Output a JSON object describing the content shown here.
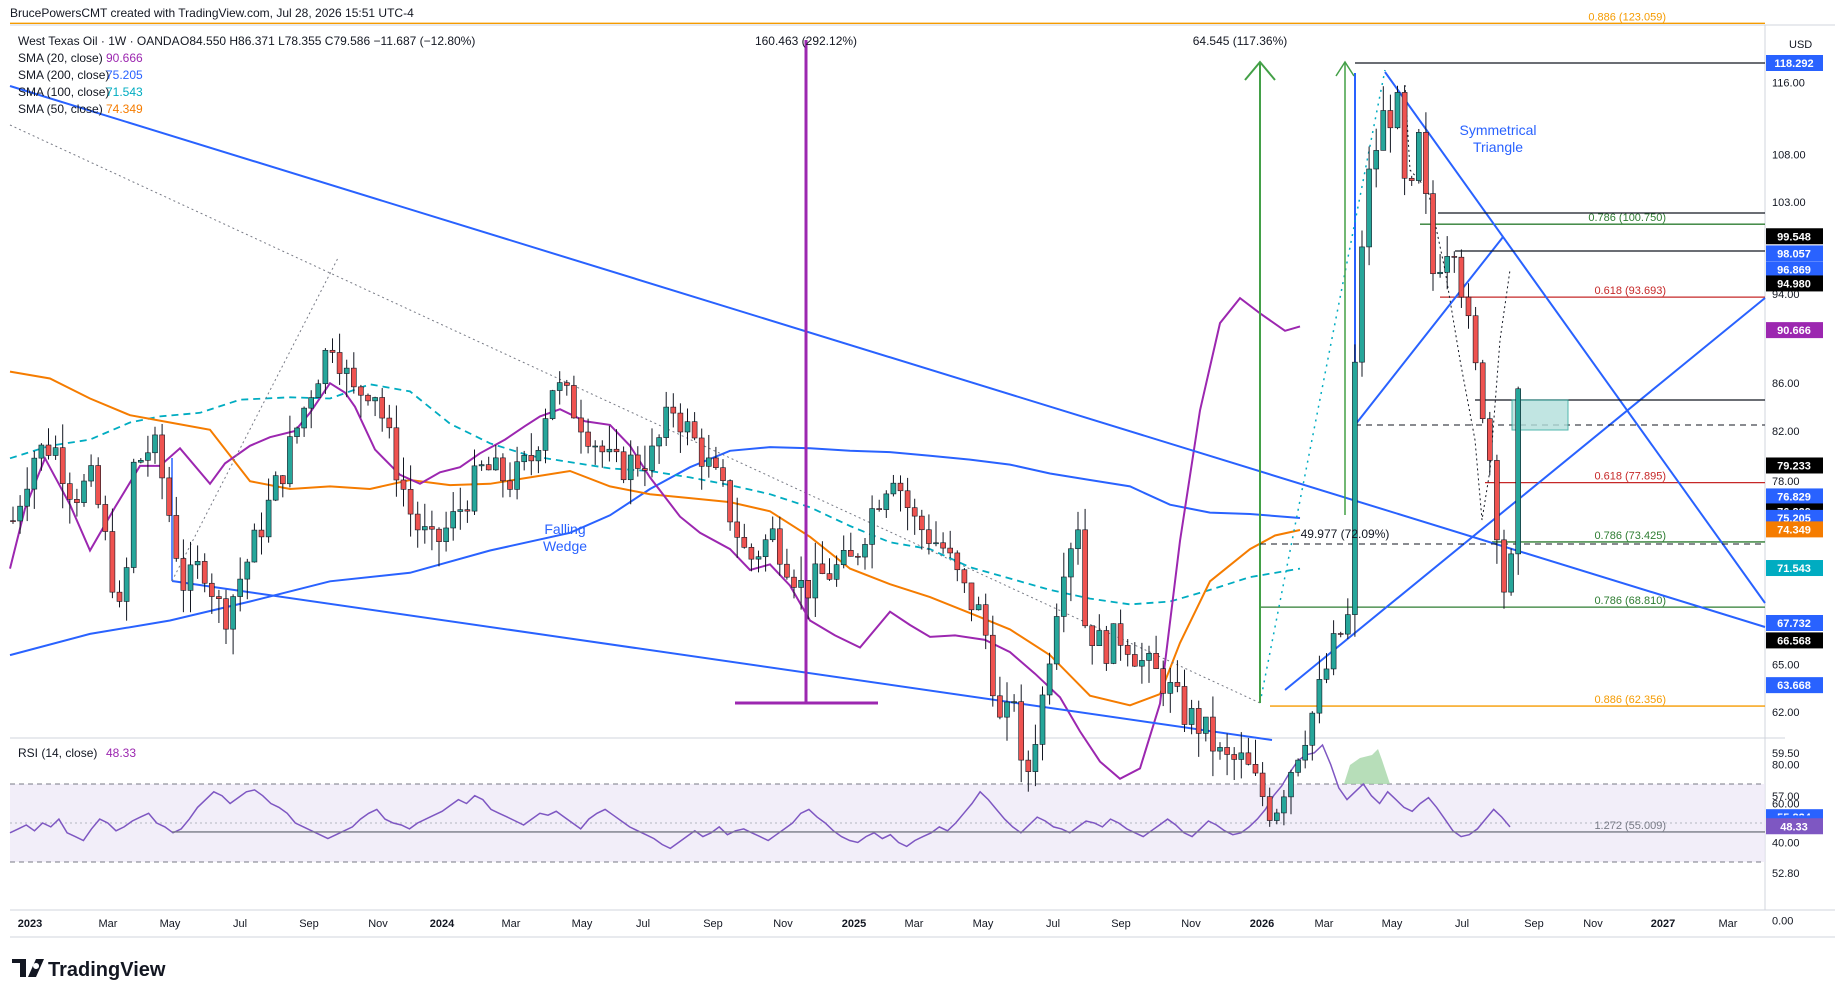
{
  "header": {
    "credit": "BrucePowersCMT created with TradingView.com, Jul 28, 2026 15:51 UTC-4",
    "symbol_line": "West Texas Oil · 1W · OANDA",
    "ohlc": "O84.550 H86.371 L78.355 C79.586 −11.687 (−12.80%)"
  },
  "legend": [
    {
      "name": "SMA (20, close)",
      "value": "90.666",
      "color": "#9c27b0"
    },
    {
      "name": "SMA (200, close)",
      "value": "75.205",
      "color": "#2962ff"
    },
    {
      "name": "SMA (100, close)",
      "value": "71.543",
      "color": "#00acc1"
    },
    {
      "name": "SMA (50, close)",
      "value": "74.349",
      "color": "#f57c00"
    }
  ],
  "currency": "USD",
  "brand": "TradingView",
  "rsi": {
    "label": "RSI (14, close)",
    "value": "48.33"
  },
  "annotations": {
    "falling_wedge": [
      "Falling",
      "Wedge"
    ],
    "sym_triangle": [
      "Symmetrical",
      "Triangle"
    ],
    "measure_1": "160.463 (292.12%)",
    "measure_2": "64.545 (117.36%)",
    "measure_3": "49.977 (72.09%)"
  },
  "colors": {
    "bull": "#26a69a",
    "bear": "#ef5350",
    "sma20": "#9c27b0",
    "sma50": "#f57c00",
    "sma100": "#00acc1",
    "sma200": "#2962ff",
    "trend": "#2962ff",
    "purple": "#9c27b0",
    "green": "#43a047",
    "red": "#c62828",
    "orange": "#f59b00",
    "grey": "#787b86"
  },
  "chart_data": {
    "type": "line",
    "title": "West Texas Oil · 1W · OANDA",
    "y_axis": {
      "unit": "USD",
      "scale": "log",
      "range": [
        52.8,
        124.5
      ],
      "ticks": [
        116.0,
        108.0,
        103.0,
        94.0,
        86.0,
        82.0,
        78.0,
        65.0,
        62.0,
        59.5,
        57.0,
        52.8
      ]
    },
    "x_axis": {
      "ticks": [
        "2023",
        "Mar",
        "May",
        "Jul",
        "Sep",
        "Nov",
        "2024",
        "Mar",
        "May",
        "Jul",
        "Sep",
        "Nov",
        "2025",
        "Mar",
        "May",
        "Jul",
        "Sep",
        "Nov",
        "2026",
        "Mar",
        "May",
        "Jul",
        "Sep",
        "Nov",
        "2027",
        "Mar"
      ]
    },
    "price_labels": [
      {
        "value": "118.292",
        "color": "#2962ff"
      },
      {
        "value": "99.548",
        "color": "#000000"
      },
      {
        "value": "98.057",
        "color": "#2962ff"
      },
      {
        "value": "96.869",
        "color": "#2962ff"
      },
      {
        "value": "94.980",
        "color": "#000000"
      },
      {
        "value": "90.666",
        "color": "#9c27b0"
      },
      {
        "value": "79.233",
        "color": "#000000"
      },
      {
        "value": "76.829",
        "color": "#2962ff"
      },
      {
        "value": "76.829",
        "color": "#000000"
      },
      {
        "value": "75.205",
        "color": "#2962ff"
      },
      {
        "value": "74.349",
        "color": "#f57c00"
      },
      {
        "value": "71.543",
        "color": "#00acc1"
      },
      {
        "value": "67.732",
        "color": "#2962ff"
      },
      {
        "value": "66.568",
        "color": "#000000"
      },
      {
        "value": "63.668",
        "color": "#2962ff"
      },
      {
        "value": "55.824",
        "color": "#2962ff"
      },
      {
        "value": "55.480",
        "color": "#2962ff"
      }
    ],
    "fib_levels": [
      {
        "label": "0.886 (123.059)",
        "value": 123.059,
        "color": "#f59b00"
      },
      {
        "label": "0.786 (100.750)",
        "value": 100.75,
        "color": "#2e7d32"
      },
      {
        "label": "0.618 (93.693)",
        "value": 93.693,
        "color": "#c62828"
      },
      {
        "label": "0.618 (77.895)",
        "value": 77.895,
        "color": "#c62828"
      },
      {
        "label": "0.786 (73.425)",
        "value": 73.425,
        "color": "#2e7d32"
      },
      {
        "label": "0.786 (68.810)",
        "value": 68.81,
        "color": "#2e7d32"
      },
      {
        "label": "0.886 (62.356)",
        "value": 62.356,
        "color": "#f59b00"
      },
      {
        "label": "1.272 (55.009)",
        "value": 55.009,
        "color": "#787b86"
      }
    ],
    "rsi": {
      "levels": [
        70,
        50,
        30
      ],
      "ticks": [
        80.0,
        60.0,
        40.0,
        0.0
      ],
      "last": 48.33,
      "values": [
        45,
        47,
        49,
        46,
        50,
        48,
        52,
        45,
        43,
        41,
        47,
        52,
        50,
        46,
        48,
        51,
        53,
        55,
        50,
        48,
        45,
        47,
        52,
        58,
        62,
        66,
        64,
        60,
        63,
        66,
        67,
        64,
        60,
        58,
        55,
        50,
        48,
        46,
        44,
        42,
        44,
        46,
        48,
        52,
        55,
        57,
        52,
        50,
        49,
        47,
        50,
        52,
        54,
        56,
        59,
        62,
        60,
        64,
        62,
        57,
        55,
        53,
        51,
        49,
        52,
        55,
        54,
        56,
        53,
        50,
        47,
        52,
        55,
        57,
        54,
        51,
        48,
        46,
        44,
        42,
        39,
        37,
        40,
        43,
        46,
        43,
        45,
        48,
        44,
        46,
        47,
        45,
        43,
        41,
        44,
        47,
        50,
        55,
        57,
        53,
        50,
        46,
        43,
        41,
        40,
        43,
        45,
        42,
        44,
        40,
        38,
        41,
        43,
        45,
        48,
        46,
        50,
        55,
        60,
        66,
        62,
        57,
        52,
        48,
        45,
        49,
        53,
        51,
        48,
        47,
        45,
        48,
        51,
        50,
        48,
        52,
        50,
        47,
        45,
        43,
        46,
        49,
        52,
        49,
        45,
        43,
        47,
        51,
        49,
        46,
        44,
        45,
        48,
        52,
        57,
        64,
        69,
        76,
        82,
        85,
        86,
        90,
        80,
        68,
        62,
        66,
        70,
        64,
        60,
        66,
        62,
        58,
        56,
        60,
        63,
        58,
        52,
        46,
        43,
        44,
        47,
        52,
        57,
        53,
        48
      ]
    },
    "sma20": [
      [
        0,
        71.5
      ],
      [
        15,
        75.9
      ],
      [
        35,
        79.8
      ],
      [
        60,
        76.2
      ],
      [
        80,
        72.8
      ],
      [
        105,
        76.0
      ],
      [
        130,
        79.2
      ],
      [
        150,
        79.2
      ],
      [
        170,
        80.6
      ],
      [
        200,
        77.8
      ],
      [
        215,
        79.4
      ],
      [
        240,
        80.8
      ],
      [
        260,
        81.5
      ],
      [
        285,
        82.0
      ],
      [
        300,
        83.5
      ],
      [
        320,
        86.0
      ],
      [
        335,
        85.2
      ],
      [
        345,
        84.0
      ],
      [
        365,
        80.5
      ],
      [
        390,
        78.5
      ],
      [
        410,
        77.8
      ],
      [
        430,
        78.7
      ],
      [
        450,
        79.1
      ],
      [
        470,
        80.2
      ],
      [
        495,
        81.3
      ],
      [
        515,
        82.4
      ],
      [
        530,
        83.2
      ],
      [
        550,
        83.8
      ],
      [
        575,
        82.8
      ],
      [
        600,
        82.5
      ],
      [
        620,
        80.8
      ],
      [
        640,
        78.3
      ],
      [
        670,
        75.3
      ],
      [
        690,
        74.1
      ],
      [
        720,
        72.9
      ],
      [
        740,
        71.4
      ],
      [
        760,
        71.8
      ],
      [
        780,
        70.3
      ],
      [
        800,
        67.9
      ],
      [
        825,
        66.9
      ],
      [
        850,
        66.1
      ],
      [
        880,
        68.5
      ],
      [
        900,
        67.6
      ],
      [
        920,
        66.8
      ],
      [
        945,
        66.9
      ],
      [
        975,
        66.6
      ],
      [
        1000,
        65.8
      ],
      [
        1025,
        64.4
      ],
      [
        1050,
        62.9
      ],
      [
        1070,
        60.8
      ],
      [
        1090,
        59.0
      ],
      [
        1110,
        58.0
      ],
      [
        1130,
        58.6
      ],
      [
        1150,
        62.5
      ],
      [
        1170,
        73.5
      ],
      [
        1190,
        83.7
      ],
      [
        1210,
        91.3
      ],
      [
        1230,
        93.6
      ],
      [
        1250,
        92.2
      ],
      [
        1275,
        90.6
      ],
      [
        1290,
        91.0
      ]
    ],
    "sma50": [
      [
        0,
        87.0
      ],
      [
        40,
        86.4
      ],
      [
        80,
        84.7
      ],
      [
        120,
        83.3
      ],
      [
        160,
        82.7
      ],
      [
        200,
        82.1
      ],
      [
        240,
        78.0
      ],
      [
        280,
        77.4
      ],
      [
        320,
        77.6
      ],
      [
        360,
        77.4
      ],
      [
        400,
        78.1
      ],
      [
        440,
        77.7
      ],
      [
        480,
        77.8
      ],
      [
        520,
        78.3
      ],
      [
        560,
        78.8
      ],
      [
        600,
        77.6
      ],
      [
        640,
        77.0
      ],
      [
        680,
        76.7
      ],
      [
        720,
        76.4
      ],
      [
        760,
        75.7
      ],
      [
        800,
        73.8
      ],
      [
        840,
        71.5
      ],
      [
        880,
        70.4
      ],
      [
        920,
        69.5
      ],
      [
        960,
        68.4
      ],
      [
        1000,
        67.3
      ],
      [
        1040,
        65.6
      ],
      [
        1080,
        63.0
      ],
      [
        1120,
        62.4
      ],
      [
        1150,
        63.1
      ],
      [
        1170,
        66.4
      ],
      [
        1200,
        70.6
      ],
      [
        1240,
        72.9
      ],
      [
        1265,
        73.9
      ],
      [
        1290,
        74.3
      ]
    ],
    "sma100": [
      [
        0,
        79.8
      ],
      [
        40,
        80.8
      ],
      [
        80,
        81.3
      ],
      [
        120,
        82.7
      ],
      [
        150,
        83.2
      ],
      [
        190,
        83.5
      ],
      [
        230,
        84.6
      ],
      [
        280,
        84.8
      ],
      [
        320,
        84.7
      ],
      [
        360,
        85.9
      ],
      [
        400,
        85.3
      ],
      [
        440,
        82.6
      ],
      [
        480,
        81.0
      ],
      [
        520,
        80.0
      ],
      [
        560,
        79.5
      ],
      [
        600,
        79.0
      ],
      [
        640,
        78.8
      ],
      [
        680,
        78.3
      ],
      [
        720,
        77.7
      ],
      [
        760,
        77.0
      ],
      [
        800,
        76.0
      ],
      [
        840,
        74.6
      ],
      [
        880,
        73.4
      ],
      [
        920,
        72.9
      ],
      [
        960,
        71.6
      ],
      [
        1000,
        70.8
      ],
      [
        1040,
        70.0
      ],
      [
        1080,
        69.4
      ],
      [
        1120,
        69.0
      ],
      [
        1160,
        69.2
      ],
      [
        1200,
        70.0
      ],
      [
        1240,
        70.9
      ],
      [
        1290,
        71.5
      ]
    ],
    "sma200": [
      [
        0,
        65.6
      ],
      [
        80,
        67.0
      ],
      [
        160,
        67.9
      ],
      [
        240,
        69.2
      ],
      [
        320,
        70.6
      ],
      [
        400,
        71.2
      ],
      [
        480,
        72.8
      ],
      [
        560,
        74.1
      ],
      [
        600,
        75.4
      ],
      [
        640,
        77.4
      ],
      [
        680,
        79.1
      ],
      [
        720,
        80.4
      ],
      [
        760,
        80.7
      ],
      [
        800,
        80.6
      ],
      [
        840,
        80.4
      ],
      [
        880,
        80.3
      ],
      [
        920,
        80.0
      ],
      [
        960,
        79.7
      ],
      [
        1000,
        79.3
      ],
      [
        1040,
        78.6
      ],
      [
        1080,
        78.1
      ],
      [
        1120,
        77.6
      ],
      [
        1160,
        76.2
      ],
      [
        1200,
        75.6
      ],
      [
        1240,
        75.5
      ],
      [
        1290,
        75.2
      ]
    ]
  }
}
